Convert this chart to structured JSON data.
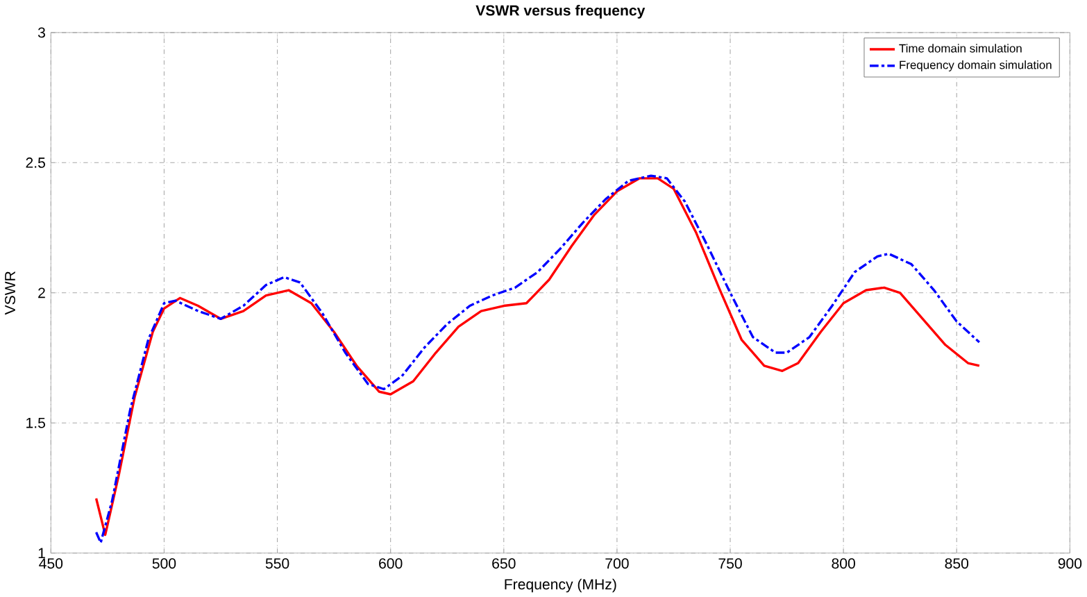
{
  "chart_data": {
    "type": "line",
    "title": "VSWR versus frequency",
    "xlabel": "Frequency (MHz)",
    "ylabel": "VSWR",
    "xlim": [
      450,
      900
    ],
    "xticks": [
      450,
      500,
      550,
      600,
      650,
      700,
      750,
      800,
      850,
      900
    ],
    "ylim": [
      1,
      3
    ],
    "yticks": [
      1,
      1.5,
      2,
      2.5,
      3
    ],
    "grid": true,
    "legend": "top right",
    "series": [
      {
        "name": "Time domain simulation",
        "color": "#ff0000",
        "line_style": "solid",
        "x": [
          470,
          474,
          480,
          487,
          495,
          500,
          507,
          515,
          525,
          535,
          545,
          555,
          565,
          575,
          585,
          595,
          600,
          610,
          620,
          630,
          640,
          650,
          660,
          670,
          680,
          690,
          700,
          710,
          718,
          725,
          735,
          745,
          755,
          765,
          773,
          780,
          790,
          800,
          810,
          818,
          825,
          835,
          845,
          855,
          860
        ],
        "values": [
          1.21,
          1.07,
          1.3,
          1.6,
          1.85,
          1.94,
          1.98,
          1.95,
          1.9,
          1.93,
          1.99,
          2.01,
          1.96,
          1.85,
          1.72,
          1.62,
          1.61,
          1.66,
          1.77,
          1.87,
          1.93,
          1.95,
          1.96,
          2.05,
          2.18,
          2.3,
          2.39,
          2.44,
          2.44,
          2.4,
          2.23,
          2.02,
          1.82,
          1.72,
          1.7,
          1.73,
          1.85,
          1.96,
          2.01,
          2.02,
          2.0,
          1.9,
          1.8,
          1.73,
          1.72
        ]
      },
      {
        "name": "Frequency domain simulation",
        "color": "#0000ff",
        "line_style": "dashdot",
        "x": [
          470,
          472,
          477,
          485,
          493,
          500,
          505,
          515,
          525,
          535,
          545,
          553,
          560,
          570,
          580,
          590,
          597,
          605,
          615,
          625,
          635,
          645,
          655,
          665,
          675,
          685,
          695,
          705,
          715,
          722,
          730,
          740,
          750,
          760,
          770,
          775,
          785,
          795,
          805,
          815,
          820,
          830,
          840,
          850,
          860
        ],
        "values": [
          1.08,
          1.04,
          1.2,
          1.55,
          1.82,
          1.96,
          1.97,
          1.93,
          1.9,
          1.95,
          2.03,
          2.06,
          2.04,
          1.92,
          1.77,
          1.65,
          1.63,
          1.68,
          1.79,
          1.88,
          1.95,
          1.99,
          2.02,
          2.08,
          2.17,
          2.27,
          2.36,
          2.43,
          2.45,
          2.44,
          2.35,
          2.18,
          2.0,
          1.83,
          1.77,
          1.77,
          1.83,
          1.95,
          2.08,
          2.14,
          2.15,
          2.11,
          2.01,
          1.89,
          1.81
        ]
      }
    ]
  }
}
